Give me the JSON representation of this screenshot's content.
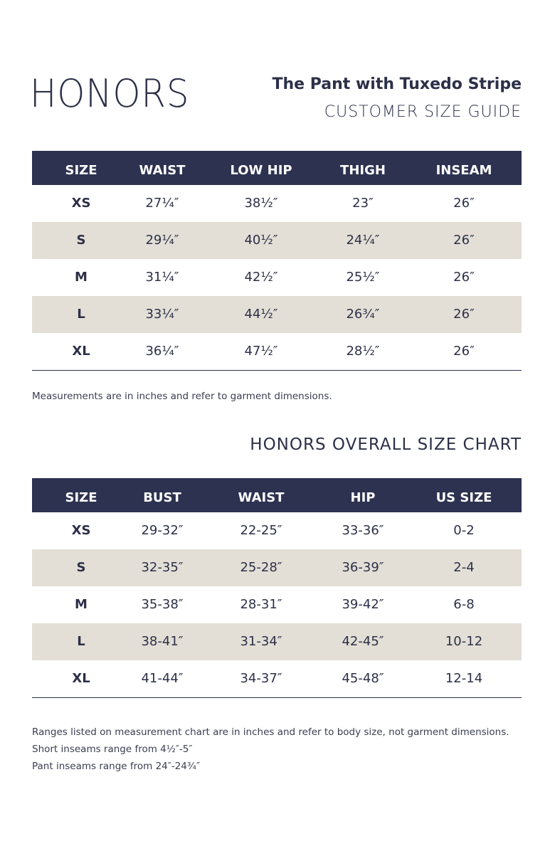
{
  "header": {
    "logo": "HONORS",
    "title": "The Pant with Tuxedo Stripe",
    "subtitle": "CUSTOMER SIZE GUIDE"
  },
  "table1": {
    "columns": [
      "SIZE",
      "WAIST",
      "LOW HIP",
      "THIGH",
      "INSEAM"
    ],
    "rows": [
      [
        "XS",
        "27¼″",
        "38½″",
        "23″",
        "26″"
      ],
      [
        "S",
        "29¼″",
        "40½″",
        "24¼″",
        "26″"
      ],
      [
        "M",
        "31¼″",
        "42½″",
        "25½″",
        "26″"
      ],
      [
        "L",
        "33¼″",
        "44½″",
        "26¾″",
        "26″"
      ],
      [
        "XL",
        "36¼″",
        "47½″",
        "28½″",
        "26″"
      ]
    ],
    "note": "Measurements are in inches and refer to garment dimensions."
  },
  "section_title": "HONORS OVERALL SIZE CHART",
  "table2": {
    "columns": [
      "SIZE",
      "BUST",
      "WAIST",
      "HIP",
      "US SIZE"
    ],
    "rows": [
      [
        "XS",
        "29-32″",
        "22-25″",
        "33-36″",
        "0-2"
      ],
      [
        "S",
        "32-35″",
        "25-28″",
        "36-39″",
        "2-4"
      ],
      [
        "M",
        "35-38″",
        "28-31″",
        "39-42″",
        "6-8"
      ],
      [
        "L",
        "38-41″",
        "31-34″",
        "42-45″",
        "10-12"
      ],
      [
        "XL",
        "41-44″",
        "34-37″",
        "45-48″",
        "12-14"
      ]
    ]
  },
  "notes": [
    "Ranges listed on measurement chart are in inches and refer to body size, not garment dimensions.",
    "Short inseams range from 4½″-5″",
    "Pant inseams range from 24″-24¾″"
  ]
}
